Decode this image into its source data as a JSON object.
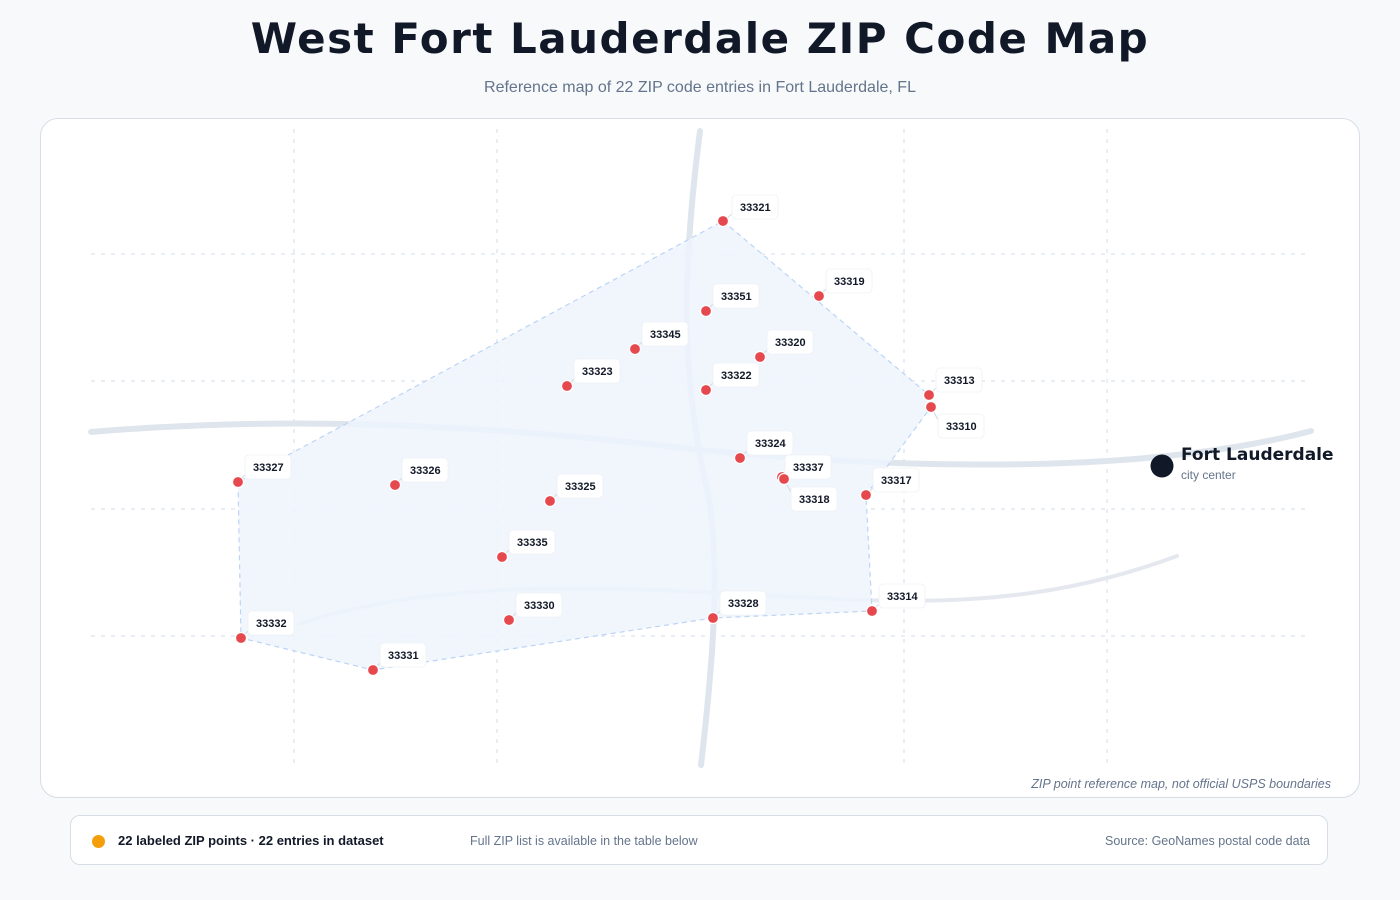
{
  "header": {
    "title": "West Fort Lauderdale ZIP Code Map",
    "subtitle": "Reference map of 22 ZIP code entries in Fort Lauderdale, FL"
  },
  "map": {
    "disclaimer": "ZIP point reference map, not official USPS boundaries",
    "city_center": {
      "name": "Fort Lauderdale",
      "sublabel": "city center",
      "marker_color": "#111827"
    },
    "marker_color": "#e5484d",
    "hull_fill": "#eef4fd",
    "hull_stroke": "#bcd4f5",
    "zip_points": [
      {
        "zip": "33321"
      },
      {
        "zip": "33319"
      },
      {
        "zip": "33351"
      },
      {
        "zip": "33345"
      },
      {
        "zip": "33320"
      },
      {
        "zip": "33323"
      },
      {
        "zip": "33322"
      },
      {
        "zip": "33313"
      },
      {
        "zip": "33310"
      },
      {
        "zip": "33324"
      },
      {
        "zip": "33337"
      },
      {
        "zip": "33318"
      },
      {
        "zip": "33317"
      },
      {
        "zip": "33327"
      },
      {
        "zip": "33326"
      },
      {
        "zip": "33325"
      },
      {
        "zip": "33335"
      },
      {
        "zip": "33330"
      },
      {
        "zip": "33328"
      },
      {
        "zip": "33314"
      },
      {
        "zip": "33332"
      },
      {
        "zip": "33331"
      }
    ]
  },
  "footer": {
    "indicator_color": "#f59e0b",
    "count_text": "22 labeled ZIP points · 22 entries in dataset",
    "note_text": "Full ZIP list is available in the table below",
    "source_text": "Source: GeoNames postal code data"
  }
}
